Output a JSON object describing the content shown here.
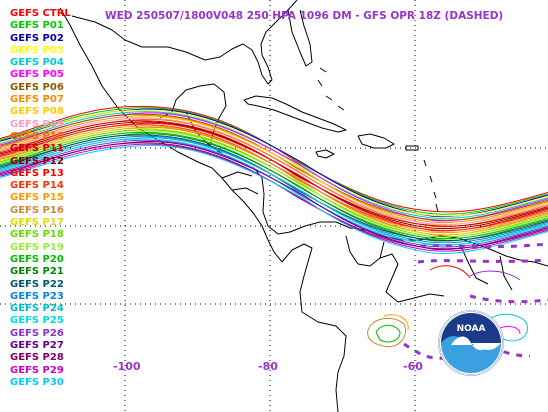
{
  "header": {
    "title": "WED 250507/1800V048  250 HPA 1096 DM - GFS OPR 18Z (DASHED)"
  },
  "legend": [
    {
      "label": "GEFS CTRL",
      "color": "#ff0000"
    },
    {
      "label": "GEFS P01",
      "color": "#00cc00"
    },
    {
      "label": "GEFS P02",
      "color": "#0000aa"
    },
    {
      "label": "GEFS P03",
      "color": "#ffff00"
    },
    {
      "label": "GEFS P04",
      "color": "#00cccc"
    },
    {
      "label": "GEFS P05",
      "color": "#ff00ff"
    },
    {
      "label": "GEFS P06",
      "color": "#8b5a00"
    },
    {
      "label": "GEFS P07",
      "color": "#ff8800"
    },
    {
      "label": "GEFS P08",
      "color": "#ffcc00"
    },
    {
      "label": "GEFS P09",
      "color": "#ff99cc"
    },
    {
      "label": "GEFS P10",
      "color": "#ff6600"
    },
    {
      "label": "GEFS P11",
      "color": "#cc0000"
    },
    {
      "label": "GEFS P12",
      "color": "#880000"
    },
    {
      "label": "GEFS P13",
      "color": "#ff0000"
    },
    {
      "label": "GEFS P14",
      "color": "#ff3300"
    },
    {
      "label": "GEFS P15",
      "color": "#ff9900"
    },
    {
      "label": "GEFS P16",
      "color": "#cc8833"
    },
    {
      "label": "GEFS P17",
      "color": "#dddd00"
    },
    {
      "label": "GEFS P18",
      "color": "#66dd00"
    },
    {
      "label": "GEFS P19",
      "color": "#99ee33"
    },
    {
      "label": "GEFS P20",
      "color": "#00bb00"
    },
    {
      "label": "GEFS P21",
      "color": "#008800"
    },
    {
      "label": "GEFS P22",
      "color": "#005577"
    },
    {
      "label": "GEFS P23",
      "color": "#0088ee"
    },
    {
      "label": "GEFS P24",
      "color": "#00bbcc"
    },
    {
      "label": "GEFS P25",
      "color": "#00dddd"
    },
    {
      "label": "GEFS P26",
      "color": "#8833cc"
    },
    {
      "label": "GEFS P27",
      "color": "#660099"
    },
    {
      "label": "GEFS P28",
      "color": "#880066"
    },
    {
      "label": "GEFS P29",
      "color": "#cc00cc"
    },
    {
      "label": "GEFS P30",
      "color": "#00ccff"
    }
  ],
  "axis": {
    "label_color": "#9933cc",
    "lon_labels": [
      {
        "text": "-100",
        "lon": -100
      },
      {
        "text": "-80",
        "lon": -80
      },
      {
        "text": "-60",
        "lon": -60
      }
    ]
  },
  "logo": {
    "text": "NOAA"
  }
}
